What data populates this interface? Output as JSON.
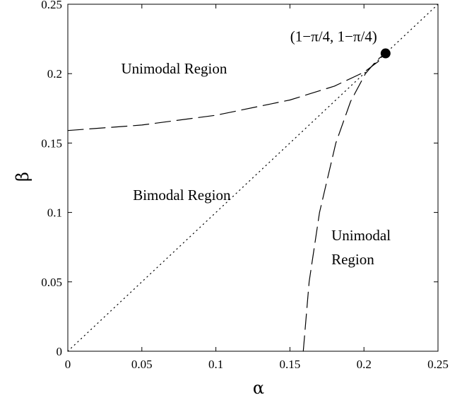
{
  "chart_data": {
    "type": "line",
    "xlabel": "α",
    "ylabel": "β",
    "xlim": [
      0,
      0.25
    ],
    "ylim": [
      0,
      0.25
    ],
    "xticks": [
      "0",
      "0.05",
      "0.1",
      "0.15",
      "0.2",
      "0.25"
    ],
    "yticks": [
      "0",
      "0.05",
      "0.1",
      "0.15",
      "0.2",
      "0.25"
    ],
    "grid": false,
    "series": [
      {
        "style": "dotted",
        "x": [
          0,
          0.25
        ],
        "y": [
          0,
          0.25
        ]
      },
      {
        "style": "dashed",
        "x": [
          0,
          0.05,
          0.1,
          0.15,
          0.18,
          0.2,
          0.21,
          0.2146
        ],
        "y": [
          0.159,
          0.163,
          0.17,
          0.181,
          0.191,
          0.201,
          0.209,
          0.2146
        ]
      },
      {
        "style": "dashed",
        "x": [
          0.159,
          0.163,
          0.17,
          0.181,
          0.191,
          0.201,
          0.209,
          0.2146
        ],
        "y": [
          0,
          0.05,
          0.1,
          0.15,
          0.18,
          0.2,
          0.21,
          0.2146
        ]
      }
    ],
    "point": {
      "x": 0.2146,
      "y": 0.2146,
      "label": "(1−π/4, 1−π/4)"
    },
    "annotations": [
      {
        "text": "Unimodal Region",
        "x": 0.036,
        "y": 0.2,
        "lines": [
          "Unimodal Region"
        ]
      },
      {
        "text": "Bimodal Region",
        "x": 0.044,
        "y": 0.109,
        "lines": [
          "Bimodal Region"
        ]
      },
      {
        "text": "Unimodal Region",
        "x": 0.178,
        "y": 0.08,
        "lines": [
          "Unimodal",
          "Region"
        ]
      }
    ]
  }
}
